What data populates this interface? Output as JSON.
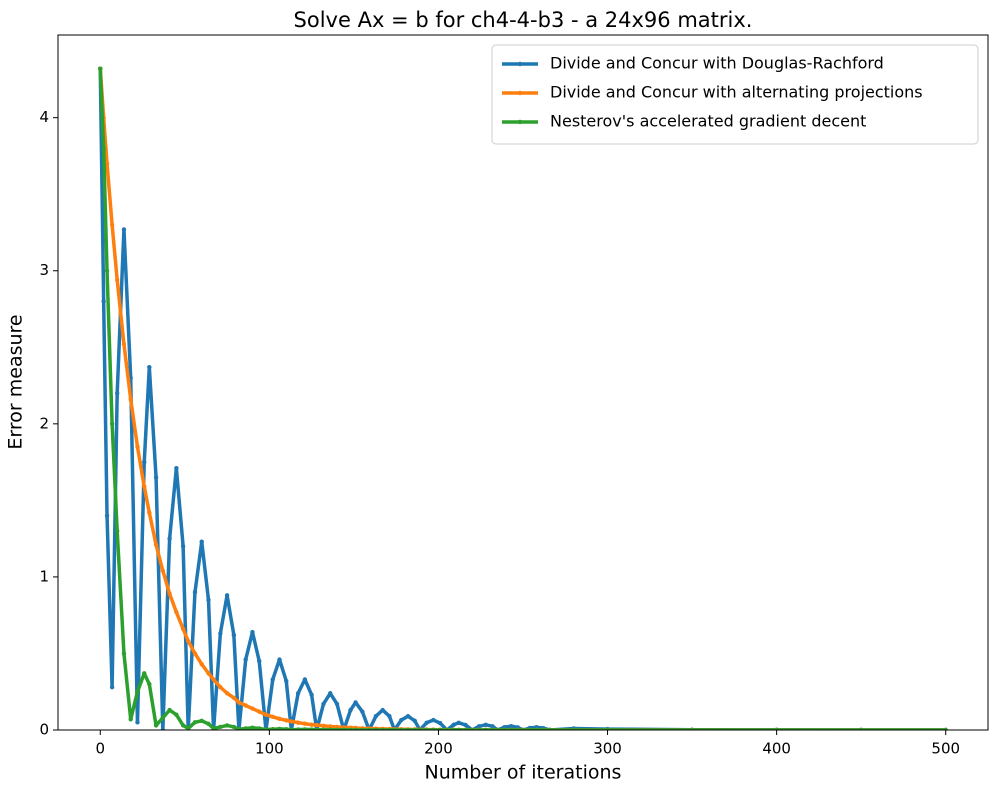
{
  "chart_data": {
    "type": "line",
    "title": "Solve Ax = b for ch4-4-b3 - a 24x96 matrix.",
    "x_label": "Number of iterations",
    "y_label": "Error measure",
    "x": [
      0,
      2,
      4,
      7,
      10,
      14,
      18,
      22,
      26,
      29,
      33,
      37,
      41,
      45,
      49,
      52,
      56,
      60,
      64,
      67,
      71,
      75,
      79,
      82,
      86,
      90,
      94,
      98,
      102,
      106,
      110,
      113,
      117,
      121,
      125,
      128,
      132,
      136,
      140,
      144,
      148,
      151,
      155,
      159,
      163,
      167,
      171,
      174,
      178,
      182,
      186,
      189,
      193,
      197,
      201,
      205,
      209,
      212,
      216,
      220,
      224,
      228,
      232,
      235,
      239,
      243,
      247,
      250,
      254,
      258,
      262,
      266,
      280,
      300,
      350,
      400,
      450,
      500
    ],
    "series": [
      {
        "name": "Divide and Concur with Douglas-Rachford",
        "color": "#1f77b4",
        "values": [
          4.32,
          2.8,
          1.4,
          0.28,
          2.2,
          3.27,
          2.3,
          0.05,
          1.75,
          2.37,
          1.65,
          0,
          1.25,
          1.71,
          1.2,
          0,
          0.9,
          1.23,
          0.85,
          0,
          0.63,
          0.88,
          0.62,
          0,
          0.46,
          0.64,
          0.45,
          0,
          0.33,
          0.46,
          0.32,
          0,
          0.24,
          0.33,
          0.23,
          0,
          0.17,
          0.24,
          0.17,
          0,
          0.13,
          0.18,
          0.12,
          0,
          0.09,
          0.13,
          0.09,
          0,
          0.065,
          0.09,
          0.06,
          0,
          0.047,
          0.065,
          0.045,
          0,
          0.034,
          0.047,
          0.033,
          0,
          0.024,
          0.034,
          0.024,
          0,
          0.018,
          0.025,
          0.017,
          0,
          0.013,
          0.018,
          0.012,
          0,
          0.01,
          0.006,
          0.002,
          0.001,
          0,
          0
        ]
      },
      {
        "name": "Divide and Concur with alternating projections",
        "color": "#ff7f0e",
        "values": [
          4.32,
          4.0,
          3.7,
          3.3,
          2.94,
          2.52,
          2.16,
          1.85,
          1.59,
          1.42,
          1.21,
          1.04,
          0.89,
          0.77,
          0.66,
          0.58,
          0.5,
          0.43,
          0.37,
          0.33,
          0.28,
          0.24,
          0.21,
          0.18,
          0.16,
          0.14,
          0.12,
          0.1,
          0.086,
          0.073,
          0.063,
          0.056,
          0.048,
          0.041,
          0.035,
          0.032,
          0.027,
          0.023,
          0.02,
          0.017,
          0.015,
          0.013,
          0.011,
          0.01,
          0.0083,
          0.0071,
          0.006,
          0.0054,
          0.0046,
          0.004,
          0.0034,
          0.003,
          0.0025,
          0.0022,
          0.002,
          0.0017,
          0.0015,
          0.0013,
          0.0012,
          0.001,
          0.001,
          0.001,
          0.001,
          0.001,
          0.001,
          0.001,
          0.001,
          0.001,
          0,
          0,
          0,
          0,
          0,
          0,
          0,
          0,
          0,
          0
        ]
      },
      {
        "name": "Nesterov's accelerated gradient decent",
        "color": "#2ca02c",
        "values": [
          4.32,
          3.8,
          3.0,
          2.0,
          1.3,
          0.5,
          0.07,
          0.25,
          0.37,
          0.3,
          0.03,
          0.08,
          0.13,
          0.1,
          0.03,
          0.01,
          0.05,
          0.06,
          0.04,
          0.01,
          0.02,
          0.03,
          0.02,
          0.005,
          0.01,
          0.015,
          0.01,
          0.003,
          0.005,
          0.007,
          0.005,
          0.002,
          0.003,
          0.004,
          0.003,
          0.001,
          0.002,
          0.002,
          0.001,
          0.001,
          0,
          0,
          0,
          0,
          0,
          0,
          0,
          0,
          0,
          0,
          0,
          0,
          0,
          0,
          0,
          0,
          0,
          0,
          0,
          0,
          0,
          0,
          0,
          0,
          0,
          0,
          0,
          0,
          0,
          0,
          0,
          0,
          0,
          0,
          0,
          0,
          0,
          0
        ]
      }
    ],
    "xlim": [
      -25,
      525
    ],
    "ylim": [
      0,
      4.54
    ],
    "xticks": [
      0,
      100,
      200,
      300,
      400,
      500
    ],
    "yticks": [
      0,
      1,
      2,
      3,
      4
    ],
    "grid": false,
    "legend": "upper right"
  }
}
